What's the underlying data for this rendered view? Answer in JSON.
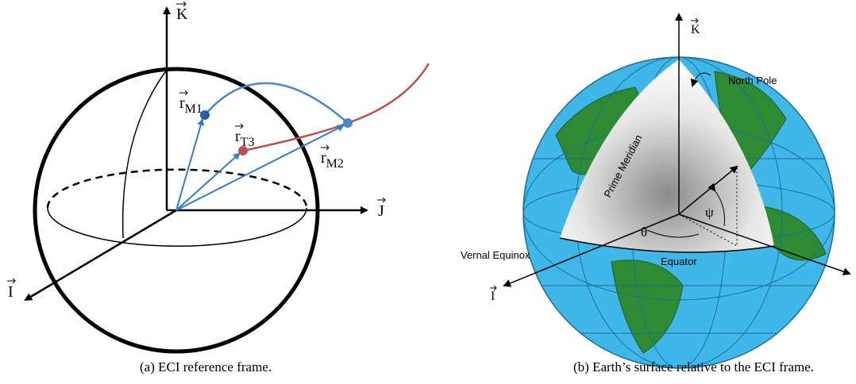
{
  "figure_a": {
    "axes": {
      "k": "K",
      "j": "J",
      "i": "I"
    },
    "vectors": [
      {
        "symbol": "r",
        "subscript": "M1"
      },
      {
        "symbol": "r",
        "subscript": "T3"
      },
      {
        "symbol": "r",
        "subscript": "M2"
      }
    ],
    "caption": "(a)  ECI reference frame."
  },
  "figure_b": {
    "axes": {
      "k": "K",
      "i": "I"
    },
    "labels": {
      "north_pole": "North Pole",
      "prime_meridian": "Prime Meridian",
      "vernal_equinox": "Vernal Equinox",
      "equator": "Equator",
      "psi": "ψ",
      "theta": "θ"
    },
    "caption": "(b)  Earth’s surface relative to the ECI frame."
  }
}
